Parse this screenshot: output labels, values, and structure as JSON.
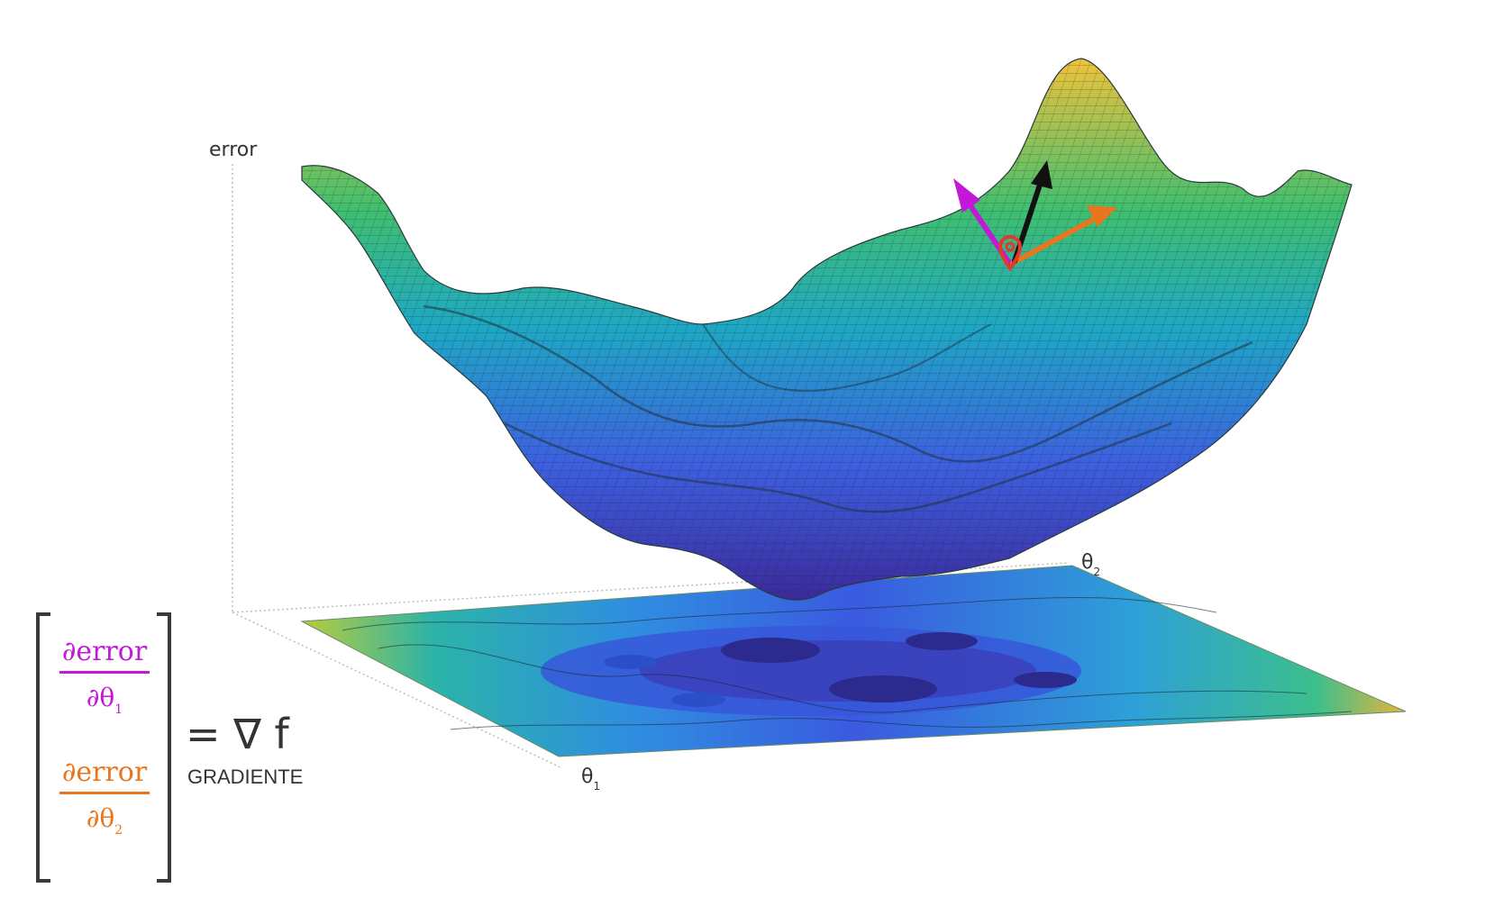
{
  "axes": {
    "vertical_label": "error",
    "axis1_symbol": "θ",
    "axis1_subscript": "1",
    "axis2_symbol": "θ",
    "axis2_subscript": "2"
  },
  "gradient": {
    "row1_numerator": "∂error",
    "row1_denominator": "∂θ",
    "row1_subscript": "1",
    "row2_numerator": "∂error",
    "row2_denominator": "∂θ",
    "row2_subscript": "2",
    "equals_text": "= ∇ f",
    "caption": "GRADIENTE"
  },
  "colors": {
    "row1": "#c318d8",
    "row2": "#e8761f",
    "arrow_normal": "#111111",
    "point_marker": "#e03a2a",
    "surface_low": "#3b2a9c",
    "surface_mid": "#1ea7c5",
    "surface_high": "#f0c23a"
  },
  "icons": {
    "point": "map-pin-icon",
    "arrow1": "arrow-theta1-icon",
    "arrow2": "arrow-theta2-icon",
    "arrow3": "arrow-normal-icon"
  }
}
